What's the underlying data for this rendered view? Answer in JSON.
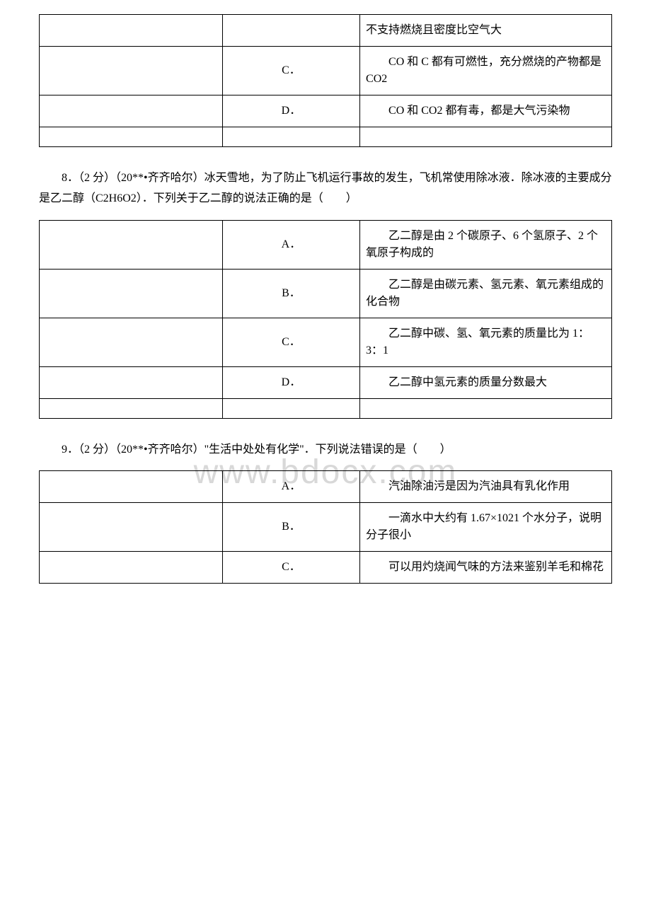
{
  "watermark": "www.bdocx.com",
  "table7": {
    "rows": [
      {
        "label": "",
        "text_cont": "不支持燃烧且密度比空气大"
      },
      {
        "label": "C．",
        "text": "CO 和 C 都有可燃性，充分燃烧的产物都是 CO2"
      },
      {
        "label": "D．",
        "text": "CO 和 CO2 都有毒，都是大气污染物"
      }
    ]
  },
  "q8": {
    "text": "8．（2 分）（20**•齐齐哈尔）冰天雪地，为了防止飞机运行事故的发生，飞机常使用除冰液．除冰液的主要成分是乙二醇（C2H6O2）．下列关于乙二醇的说法正确的是（　　）"
  },
  "table8": {
    "rows": [
      {
        "label": "A．",
        "text": "乙二醇是由 2 个碳原子、6 个氢原子、2 个氧原子构成的"
      },
      {
        "label": "B．",
        "text": "乙二醇是由碳元素、氢元素、氧元素组成的化合物"
      },
      {
        "label": "C．",
        "text": "乙二醇中碳、氢、氧元素的质量比为 1：3：1"
      },
      {
        "label": "D．",
        "text": "乙二醇中氢元素的质量分数最大"
      }
    ]
  },
  "q9": {
    "text": "9．（2 分）（20**•齐齐哈尔）\"生活中处处有化学\"．下列说法错误的是（　　）"
  },
  "table9": {
    "rows": [
      {
        "label": "A．",
        "text": "汽油除油污是因为汽油具有乳化作用"
      },
      {
        "label": "B．",
        "text": "一滴水中大约有 1.67×1021 个水分子，说明分子很小"
      },
      {
        "label": "C．",
        "text": "可以用灼烧闻气味的方法来鉴别羊毛和棉花"
      }
    ]
  }
}
